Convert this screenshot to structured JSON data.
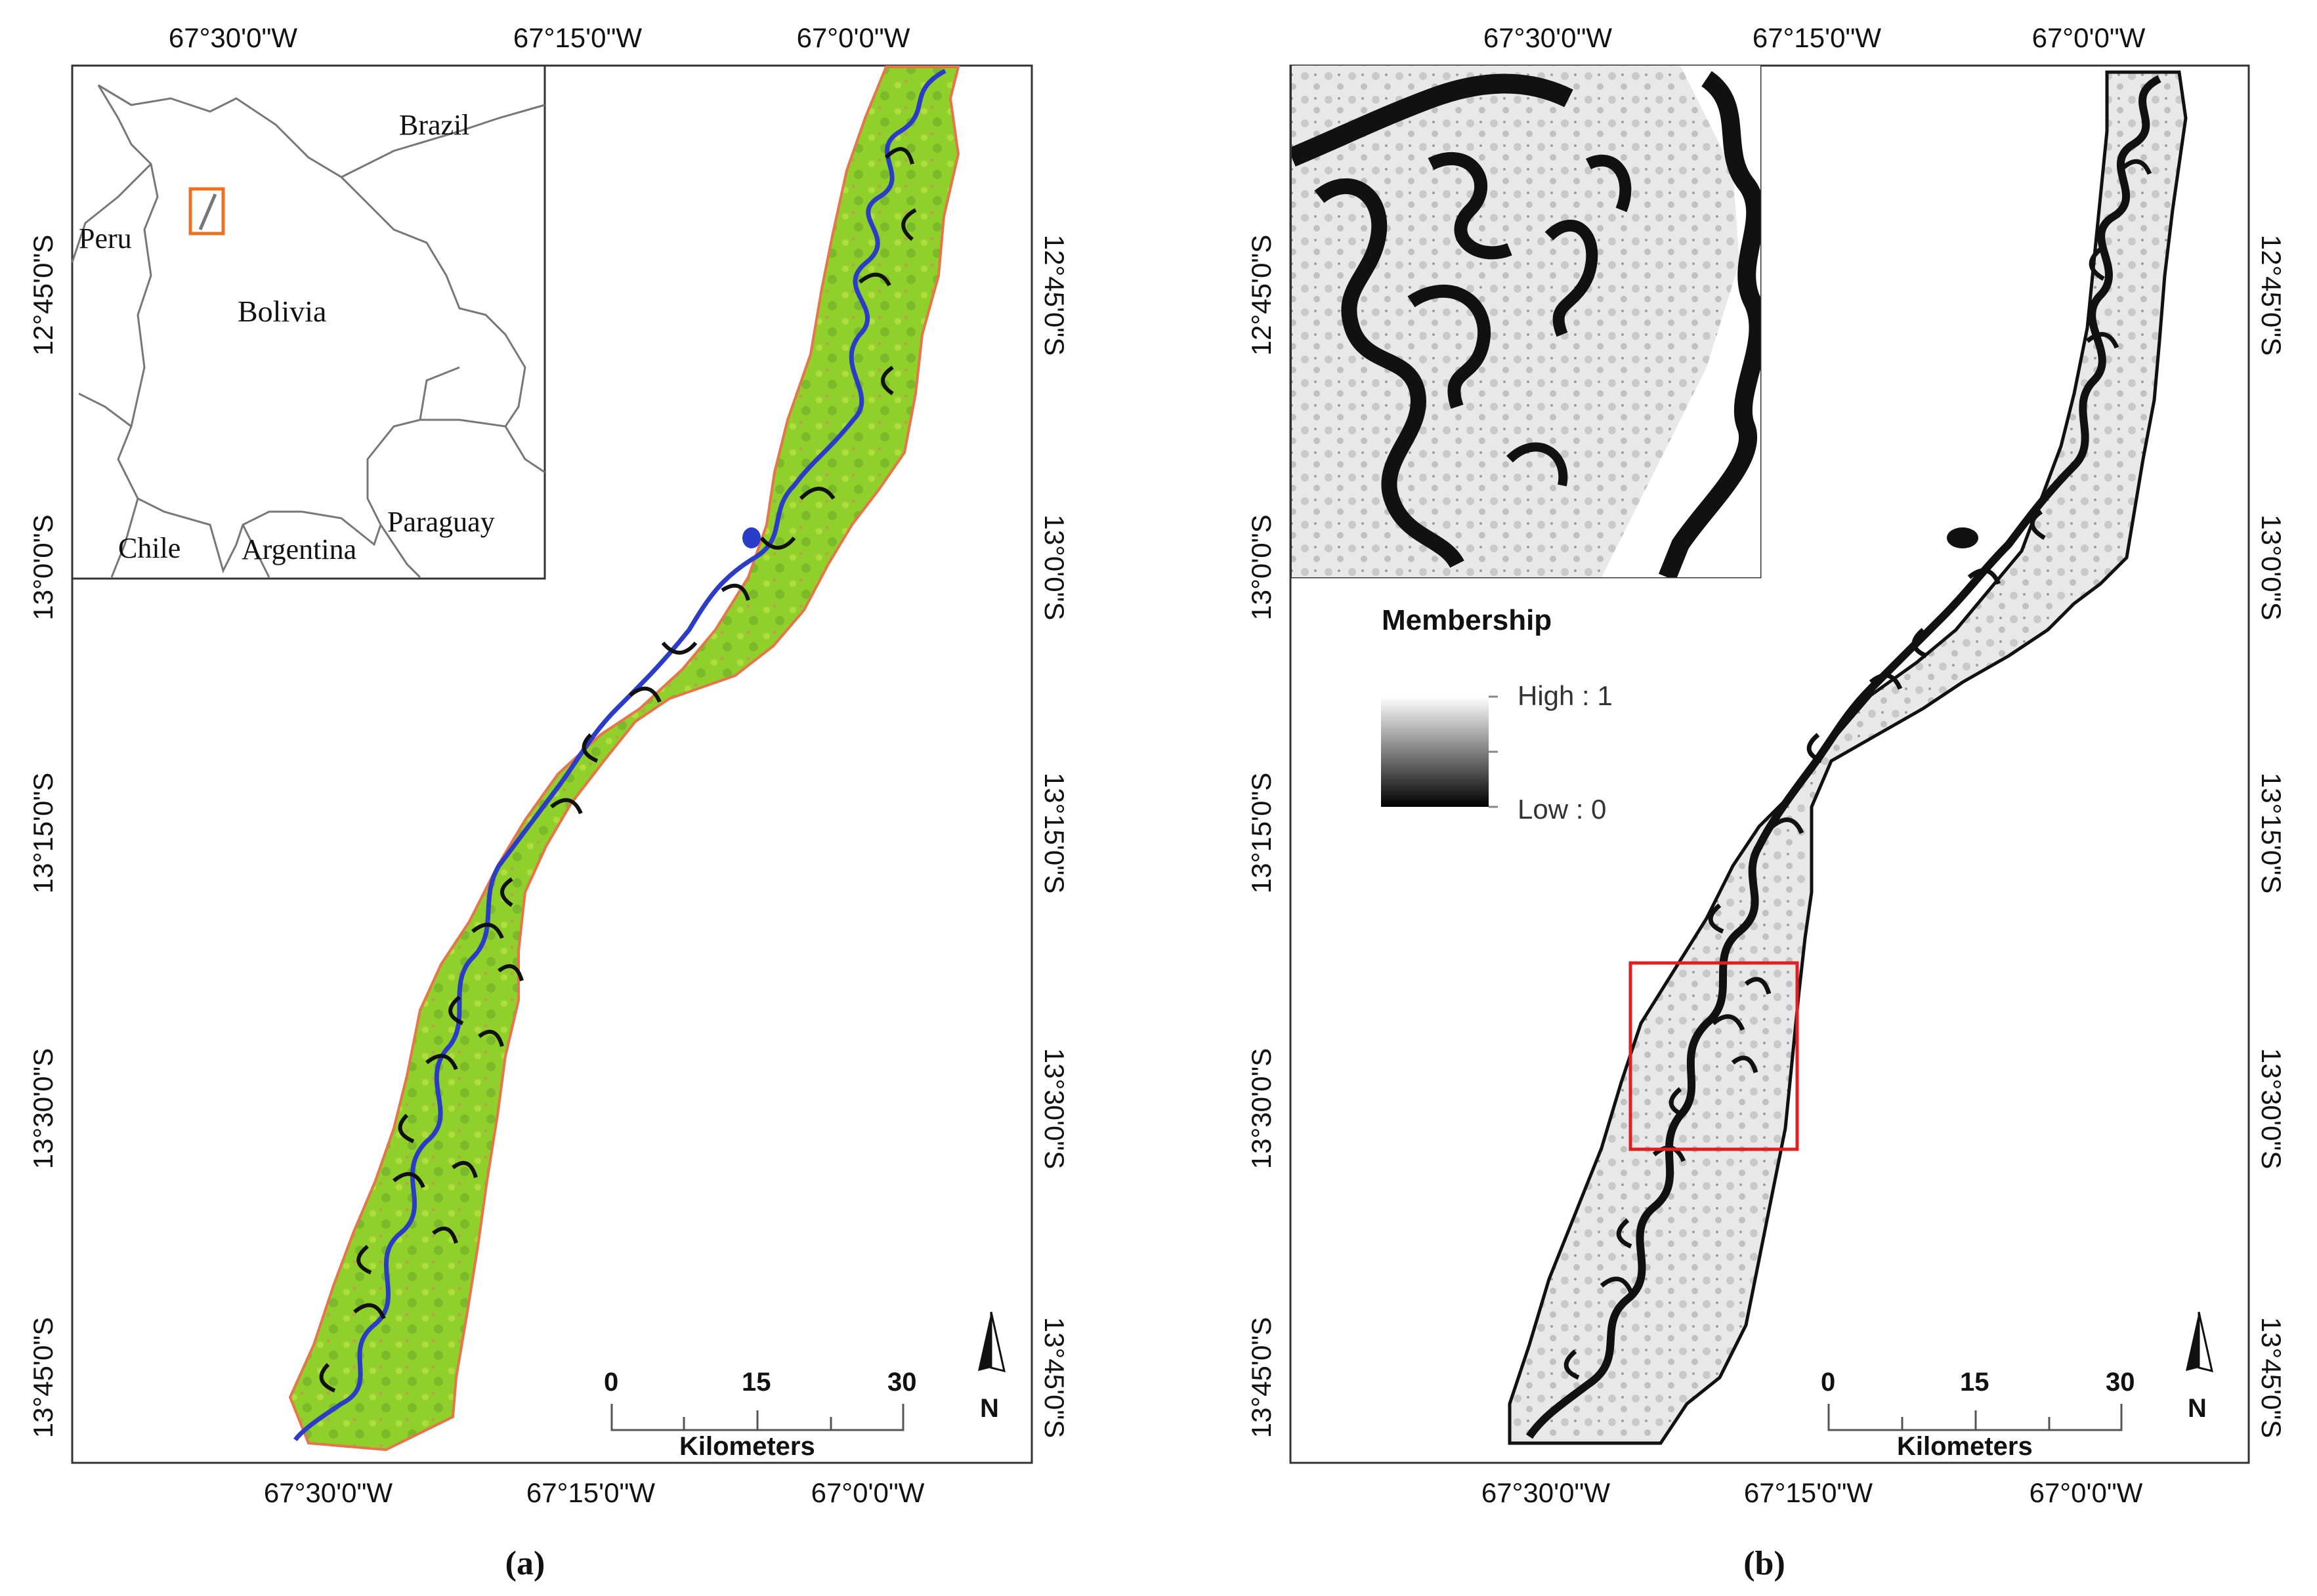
{
  "panel_a": {
    "label": "(a)",
    "top_ticks": [
      "67°30'0\"W",
      "67°15'0\"W",
      "67°0'0\"W"
    ],
    "bottom_ticks": [
      "67°30'0\"W",
      "67°15'0\"W",
      "67°0'0\"W"
    ],
    "left_ticks": [
      "12°45'0\"S",
      "13°0'0\"S",
      "13°15'0\"S",
      "13°30'0\"S",
      "13°45'0\"S"
    ],
    "right_ticks": [
      "12°45'0\"S",
      "13°0'0\"S",
      "13°15'0\"S",
      "13°30'0\"S",
      "13°45'0\"S"
    ],
    "inset": {
      "countries": [
        "Brazil",
        "Peru",
        "Bolivia",
        "Chile",
        "Argentina",
        "Paraguay"
      ]
    },
    "scale": {
      "labels": [
        "0",
        "15",
        "30"
      ],
      "unit": "Kilometers"
    },
    "north_letter": "N"
  },
  "panel_b": {
    "label": "(b)",
    "top_ticks": [
      "67°30'0\"W",
      "67°15'0\"W",
      "67°0'0\"W"
    ],
    "bottom_ticks": [
      "67°30'0\"W",
      "67°15'0\"W",
      "67°0'0\"W"
    ],
    "left_ticks": [
      "12°45'0\"S",
      "13°0'0\"S",
      "13°15'0\"S",
      "13°30'0\"S",
      "13°45'0\"S"
    ],
    "right_ticks": [
      "12°45'0\"S",
      "13°0'0\"S",
      "13°15'0\"S",
      "13°30'0\"S",
      "13°45'0\"S"
    ],
    "legend": {
      "title": "Membership",
      "high": "High : 1",
      "low": "Low : 0"
    },
    "scale": {
      "labels": [
        "0",
        "15",
        "30"
      ],
      "unit": "Kilometers"
    },
    "north_letter": "N"
  },
  "colors": {
    "floodplain_green": "#8fd02a",
    "river_blue": "#2a3cc8",
    "outline_orange": "#e8744a",
    "highlight_red": "#e02020",
    "inset_box_orange": "#f07020"
  }
}
